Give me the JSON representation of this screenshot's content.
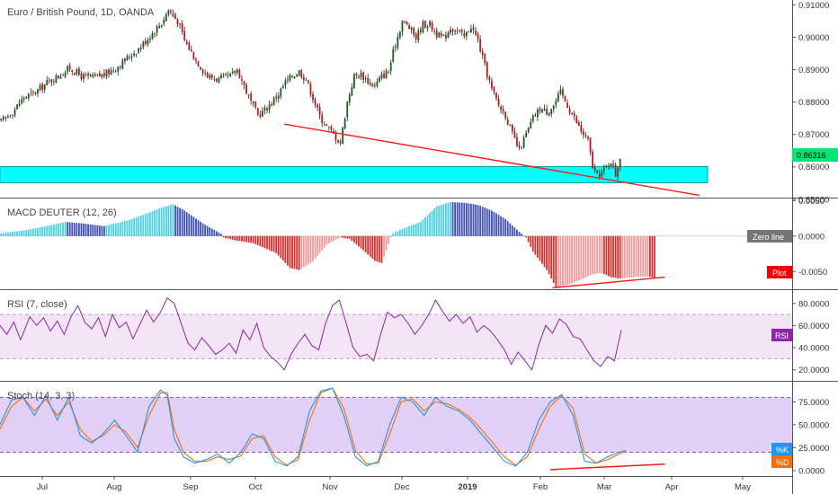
{
  "chart_data": [
    {
      "type": "candlestick",
      "title": "Euro / British Pound, 1D, OANDA",
      "y_ticks": [
        "0.91000",
        "0.90000",
        "0.89000",
        "0.88000",
        "0.87000",
        "0.86000",
        "0.85000"
      ],
      "ylim": [
        0.8505,
        0.9115
      ],
      "last_price": "0.86316",
      "last_price_value": 0.86316,
      "x_ticks": [
        "Jul",
        "Aug",
        "Sep",
        "Oct",
        "Nov",
        "Dec",
        "2019",
        "Feb",
        "Mar",
        "Apr",
        "May"
      ],
      "support_zone": [
        0.8551,
        0.8601
      ],
      "close_path": [
        [
          0,
          0.874
        ],
        [
          5,
          0.877
        ],
        [
          10,
          0.8815
        ],
        [
          15,
          0.883
        ],
        [
          20,
          0.886
        ],
        [
          25,
          0.888
        ],
        [
          30,
          0.8905
        ],
        [
          35,
          0.888
        ],
        [
          40,
          0.8875
        ],
        [
          45,
          0.8885
        ],
        [
          50,
          0.8905
        ],
        [
          55,
          0.8935
        ],
        [
          60,
          0.8965
        ],
        [
          65,
          0.9005
        ],
        [
          70,
          0.9045
        ],
        [
          73,
          0.9085
        ],
        [
          77,
          0.905
        ],
        [
          80,
          0.899
        ],
        [
          85,
          0.893
        ],
        [
          90,
          0.888
        ],
        [
          95,
          0.887
        ],
        [
          100,
          0.888
        ],
        [
          103,
          0.89
        ],
        [
          106,
          0.885
        ],
        [
          109,
          0.88
        ],
        [
          112,
          0.876
        ],
        [
          115,
          0.8775
        ],
        [
          118,
          0.88
        ],
        [
          121,
          0.8825
        ],
        [
          124,
          0.886
        ],
        [
          127,
          0.888
        ],
        [
          130,
          0.8895
        ],
        [
          133,
          0.887
        ],
        [
          136,
          0.8815
        ],
        [
          139,
          0.8755
        ],
        [
          142,
          0.8725
        ],
        [
          145,
          0.87
        ],
        [
          148,
          0.8675
        ],
        [
          151,
          0.88
        ],
        [
          154,
          0.888
        ],
        [
          157,
          0.8885
        ],
        [
          160,
          0.8865
        ],
        [
          163,
          0.885
        ],
        [
          166,
          0.888
        ],
        [
          169,
          0.8895
        ],
        [
          172,
          0.898
        ],
        [
          175,
          0.905
        ],
        [
          178,
          0.903
        ],
        [
          181,
          0.9
        ],
        [
          184,
          0.904
        ],
        [
          187,
          0.904
        ],
        [
          190,
          0.901
        ],
        [
          193,
          0.8995
        ],
        [
          196,
          0.903
        ],
        [
          199,
          0.902
        ],
        [
          202,
          0.9
        ],
        [
          205,
          0.9035
        ],
        [
          208,
          0.899
        ],
        [
          211,
          0.891
        ],
        [
          214,
          0.884
        ],
        [
          217,
          0.879
        ],
        [
          220,
          0.876
        ],
        [
          223,
          0.87
        ],
        [
          226,
          0.865
        ],
        [
          229,
          0.87
        ],
        [
          232,
          0.875
        ],
        [
          235,
          0.878
        ],
        [
          238,
          0.877
        ],
        [
          241,
          0.879
        ],
        [
          244,
          0.883
        ],
        [
          247,
          0.879
        ],
        [
          250,
          0.875
        ],
        [
          253,
          0.871
        ],
        [
          256,
          0.868
        ],
        [
          258,
          0.86
        ],
        [
          260,
          0.857
        ],
        [
          262,
          0.8585
        ],
        [
          264,
          0.86
        ],
        [
          266,
          0.862
        ],
        [
          268,
          0.8575
        ],
        [
          270,
          0.8632
        ]
      ],
      "trendline": {
        "from": [
          124,
          0.8732
        ],
        "to": [
          305,
          0.8512
        ]
      }
    },
    {
      "type": "histogram",
      "title": "MACD DEUTER (12, 26)",
      "y_ticks": [
        "0.0050",
        "0.0000",
        "-0.0050"
      ],
      "ylim": [
        -0.0075,
        0.0053
      ],
      "zero_line_label": "Zero line",
      "plot_label": "Plot",
      "value_path": [
        [
          0,
          0.0004
        ],
        [
          10,
          0.0008
        ],
        [
          20,
          0.0014
        ],
        [
          28,
          0.002
        ],
        [
          35,
          0.0018
        ],
        [
          45,
          0.0014
        ],
        [
          55,
          0.0022
        ],
        [
          63,
          0.0031
        ],
        [
          70,
          0.004
        ],
        [
          75,
          0.0045
        ],
        [
          80,
          0.0036
        ],
        [
          88,
          0.0018
        ],
        [
          96,
          0.0003
        ],
        [
          97,
          -0.0002
        ],
        [
          102,
          -0.0006
        ],
        [
          110,
          -0.001
        ],
        [
          120,
          -0.0024
        ],
        [
          126,
          -0.0045
        ],
        [
          130,
          -0.0048
        ],
        [
          136,
          -0.0036
        ],
        [
          142,
          -0.0012
        ],
        [
          148,
          -0.0002
        ],
        [
          152,
          -0.0004
        ],
        [
          158,
          -0.002
        ],
        [
          163,
          -0.0035
        ],
        [
          166,
          -0.0038
        ],
        [
          168,
          -0.002
        ],
        [
          170,
          -0.0002
        ],
        [
          171,
          0.0004
        ],
        [
          175,
          0.001
        ],
        [
          183,
          0.002
        ],
        [
          190,
          0.0042
        ],
        [
          196,
          0.0048
        ],
        [
          202,
          0.0047
        ],
        [
          208,
          0.0044
        ],
        [
          214,
          0.0036
        ],
        [
          220,
          0.0024
        ],
        [
          226,
          0.0006
        ],
        [
          229,
          -0.0002
        ],
        [
          232,
          -0.0022
        ],
        [
          238,
          -0.0048
        ],
        [
          242,
          -0.0072
        ],
        [
          248,
          -0.0068
        ],
        [
          254,
          -0.006
        ],
        [
          258,
          -0.0054
        ],
        [
          262,
          -0.0052
        ],
        [
          266,
          -0.0058
        ],
        [
          270,
          -0.006
        ],
        [
          276,
          -0.0058
        ],
        [
          282,
          -0.0057
        ],
        [
          285,
          -0.0059
        ]
      ],
      "trendline": {
        "from": [
          241,
          -0.0073
        ],
        "to": [
          290,
          -0.0058
        ]
      }
    },
    {
      "type": "line",
      "title": "RSI (7, close)",
      "y_ticks": [
        "80.0000",
        "60.0000",
        "40.0000",
        "20.0000"
      ],
      "ylim": [
        10,
        92
      ],
      "band": [
        30,
        70
      ],
      "label": "RSI",
      "rsi_path": [
        [
          0,
          60
        ],
        [
          3,
          52
        ],
        [
          6,
          63
        ],
        [
          9,
          47
        ],
        [
          13,
          68
        ],
        [
          16,
          60
        ],
        [
          19,
          67
        ],
        [
          22,
          55
        ],
        [
          25,
          64
        ],
        [
          28,
          52
        ],
        [
          31,
          68
        ],
        [
          34,
          78
        ],
        [
          37,
          63
        ],
        [
          40,
          57
        ],
        [
          43,
          67
        ],
        [
          46,
          50
        ],
        [
          49,
          70
        ],
        [
          52,
          58
        ],
        [
          55,
          63
        ],
        [
          58,
          48
        ],
        [
          61,
          61
        ],
        [
          64,
          74
        ],
        [
          67,
          63
        ],
        [
          70,
          72
        ],
        [
          73,
          85
        ],
        [
          76,
          80
        ],
        [
          79,
          62
        ],
        [
          82,
          44
        ],
        [
          85,
          38
        ],
        [
          88,
          49
        ],
        [
          91,
          42
        ],
        [
          94,
          34
        ],
        [
          97,
          38
        ],
        [
          100,
          44
        ],
        [
          103,
          35
        ],
        [
          106,
          56
        ],
        [
          109,
          47
        ],
        [
          112,
          62
        ],
        [
          115,
          40
        ],
        [
          118,
          32
        ],
        [
          121,
          27
        ],
        [
          124,
          20
        ],
        [
          127,
          34
        ],
        [
          130,
          44
        ],
        [
          133,
          52
        ],
        [
          136,
          42
        ],
        [
          139,
          38
        ],
        [
          142,
          62
        ],
        [
          145,
          78
        ],
        [
          148,
          83
        ],
        [
          151,
          62
        ],
        [
          154,
          40
        ],
        [
          157,
          32
        ],
        [
          160,
          34
        ],
        [
          163,
          28
        ],
        [
          166,
          52
        ],
        [
          169,
          72
        ],
        [
          172,
          67
        ],
        [
          175,
          70
        ],
        [
          178,
          62
        ],
        [
          181,
          52
        ],
        [
          184,
          60
        ],
        [
          187,
          70
        ],
        [
          190,
          83
        ],
        [
          193,
          73
        ],
        [
          196,
          64
        ],
        [
          199,
          70
        ],
        [
          202,
          62
        ],
        [
          205,
          68
        ],
        [
          208,
          54
        ],
        [
          211,
          60
        ],
        [
          214,
          55
        ],
        [
          217,
          47
        ],
        [
          220,
          38
        ],
        [
          223,
          25
        ],
        [
          226,
          36
        ],
        [
          229,
          28
        ],
        [
          232,
          20
        ],
        [
          235,
          43
        ],
        [
          238,
          60
        ],
        [
          241,
          53
        ],
        [
          244,
          66
        ],
        [
          247,
          61
        ],
        [
          250,
          50
        ],
        [
          253,
          48
        ],
        [
          256,
          38
        ],
        [
          259,
          28
        ],
        [
          262,
          23
        ],
        [
          265,
          32
        ],
        [
          268,
          28
        ],
        [
          271,
          56
        ]
      ]
    },
    {
      "type": "line",
      "title": "Stoch (14, 3, 3)",
      "y_ticks": [
        "75.0000",
        "50.0000",
        "25.0000",
        "0.0000"
      ],
      "ylim": [
        -6,
        97
      ],
      "band": [
        20,
        80
      ],
      "series": [
        {
          "name": "%K",
          "color": "#2196f3"
        },
        {
          "name": "%D",
          "color": "#ff6d00"
        }
      ],
      "k_path": [
        [
          0,
          50
        ],
        [
          5,
          77
        ],
        [
          10,
          80
        ],
        [
          15,
          60
        ],
        [
          20,
          82
        ],
        [
          25,
          55
        ],
        [
          30,
          80
        ],
        [
          35,
          38
        ],
        [
          40,
          30
        ],
        [
          45,
          40
        ],
        [
          50,
          55
        ],
        [
          55,
          38
        ],
        [
          60,
          20
        ],
        [
          65,
          70
        ],
        [
          70,
          88
        ],
        [
          73,
          82
        ],
        [
          76,
          35
        ],
        [
          80,
          15
        ],
        [
          85,
          8
        ],
        [
          90,
          12
        ],
        [
          95,
          18
        ],
        [
          100,
          8
        ],
        [
          105,
          20
        ],
        [
          110,
          40
        ],
        [
          115,
          35
        ],
        [
          120,
          10
        ],
        [
          125,
          5
        ],
        [
          130,
          15
        ],
        [
          135,
          65
        ],
        [
          140,
          87
        ],
        [
          145,
          90
        ],
        [
          150,
          60
        ],
        [
          155,
          15
        ],
        [
          160,
          5
        ],
        [
          165,
          10
        ],
        [
          170,
          50
        ],
        [
          175,
          80
        ],
        [
          180,
          75
        ],
        [
          185,
          60
        ],
        [
          190,
          80
        ],
        [
          195,
          70
        ],
        [
          200,
          65
        ],
        [
          205,
          55
        ],
        [
          210,
          40
        ],
        [
          215,
          25
        ],
        [
          220,
          10
        ],
        [
          225,
          5
        ],
        [
          230,
          20
        ],
        [
          235,
          55
        ],
        [
          240,
          75
        ],
        [
          245,
          83
        ],
        [
          250,
          60
        ],
        [
          255,
          10
        ],
        [
          260,
          8
        ],
        [
          265,
          15
        ],
        [
          270,
          20
        ],
        [
          273,
          22
        ]
      ],
      "d_path": [
        [
          0,
          45
        ],
        [
          5,
          70
        ],
        [
          10,
          80
        ],
        [
          15,
          65
        ],
        [
          20,
          78
        ],
        [
          25,
          60
        ],
        [
          30,
          75
        ],
        [
          35,
          45
        ],
        [
          40,
          32
        ],
        [
          45,
          38
        ],
        [
          50,
          50
        ],
        [
          55,
          42
        ],
        [
          60,
          25
        ],
        [
          65,
          60
        ],
        [
          70,
          85
        ],
        [
          73,
          85
        ],
        [
          76,
          45
        ],
        [
          80,
          20
        ],
        [
          85,
          10
        ],
        [
          90,
          10
        ],
        [
          95,
          15
        ],
        [
          100,
          12
        ],
        [
          105,
          16
        ],
        [
          110,
          35
        ],
        [
          115,
          38
        ],
        [
          120,
          15
        ],
        [
          125,
          6
        ],
        [
          130,
          12
        ],
        [
          135,
          55
        ],
        [
          140,
          85
        ],
        [
          145,
          90
        ],
        [
          150,
          68
        ],
        [
          155,
          22
        ],
        [
          160,
          7
        ],
        [
          165,
          8
        ],
        [
          170,
          40
        ],
        [
          175,
          75
        ],
        [
          180,
          78
        ],
        [
          185,
          65
        ],
        [
          190,
          75
        ],
        [
          195,
          73
        ],
        [
          200,
          67
        ],
        [
          205,
          58
        ],
        [
          210,
          45
        ],
        [
          215,
          30
        ],
        [
          220,
          15
        ],
        [
          225,
          6
        ],
        [
          230,
          15
        ],
        [
          235,
          45
        ],
        [
          240,
          70
        ],
        [
          245,
          82
        ],
        [
          250,
          68
        ],
        [
          255,
          18
        ],
        [
          260,
          8
        ],
        [
          265,
          12
        ],
        [
          270,
          18
        ],
        [
          273,
          21
        ]
      ],
      "trendline": {
        "from": [
          240,
          1
        ],
        "to": [
          290,
          7
        ]
      }
    }
  ]
}
